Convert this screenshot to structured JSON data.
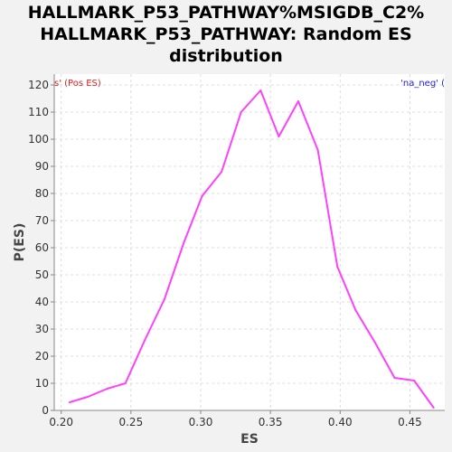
{
  "chart_data": {
    "type": "line",
    "title_lines": [
      "HALLMARK_P53_PATHWAY%MSIGDB_C2%",
      "HALLMARK_P53_PATHWAY: Random ES",
      "distribution"
    ],
    "xlabel": "ES",
    "ylabel": "P(ES)",
    "xlim": [
      0.195,
      0.475
    ],
    "ylim": [
      0,
      124
    ],
    "x_ticks": [
      "0.20",
      "0.25",
      "0.30",
      "0.35",
      "0.40",
      "0.45"
    ],
    "x_tick_values": [
      0.2,
      0.25,
      0.3,
      0.35,
      0.4,
      0.45
    ],
    "y_ticks": [
      0,
      10,
      20,
      30,
      40,
      50,
      60,
      70,
      80,
      90,
      100,
      110,
      120
    ],
    "grid": true,
    "legend_left": "s' (Pos ES)",
    "legend_right": "'na_neg' (",
    "series": [
      {
        "color": "#ff40ff",
        "x": [
          0.206,
          0.219,
          0.233,
          0.246,
          0.26,
          0.274,
          0.288,
          0.301,
          0.315,
          0.329,
          0.343,
          0.356,
          0.37,
          0.384,
          0.398,
          0.411,
          0.425,
          0.439,
          0.453,
          0.467
        ],
        "y": [
          3,
          5,
          8,
          10,
          26,
          41,
          62,
          79,
          88,
          110,
          118,
          101,
          114,
          96,
          53,
          37,
          25,
          12,
          11,
          1
        ]
      }
    ]
  }
}
